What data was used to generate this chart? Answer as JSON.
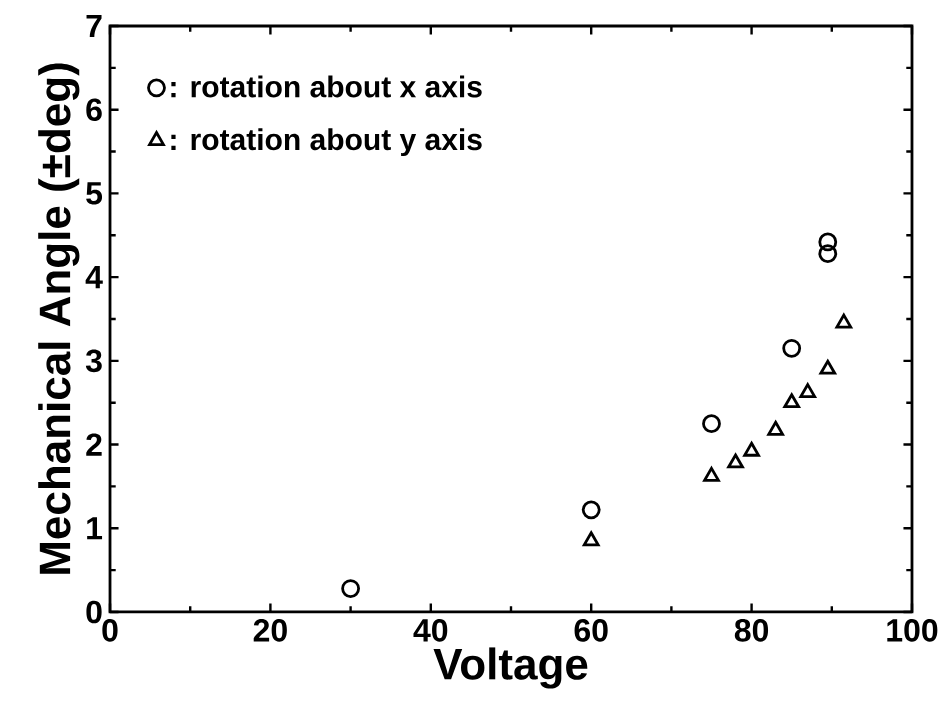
{
  "chart_data": {
    "type": "scatter",
    "xlabel": "Voltage",
    "ylabel": "Mechanical Angle (±deg)",
    "xlim": [
      0,
      100
    ],
    "ylim": [
      0,
      7
    ],
    "xticks": [
      0,
      20,
      40,
      60,
      80,
      100
    ],
    "yticks": [
      0,
      1,
      2,
      3,
      4,
      5,
      6,
      7
    ],
    "grid": false,
    "legend": "top left",
    "series": [
      {
        "name": ": rotation about x axis",
        "color": "#000000",
        "marker": "circle",
        "x": [
          30,
          60,
          75,
          85,
          89.5,
          89.5
        ],
        "values": [
          0.28,
          1.22,
          2.25,
          3.15,
          4.28,
          4.42
        ]
      },
      {
        "name": ": rotation about y axis",
        "color": "#000000",
        "marker": "triangle",
        "x": [
          60,
          75,
          78,
          80,
          83,
          85,
          87,
          89.5,
          91.5
        ],
        "values": [
          0.85,
          1.62,
          1.78,
          1.92,
          2.17,
          2.5,
          2.62,
          2.9,
          3.45
        ]
      }
    ]
  }
}
